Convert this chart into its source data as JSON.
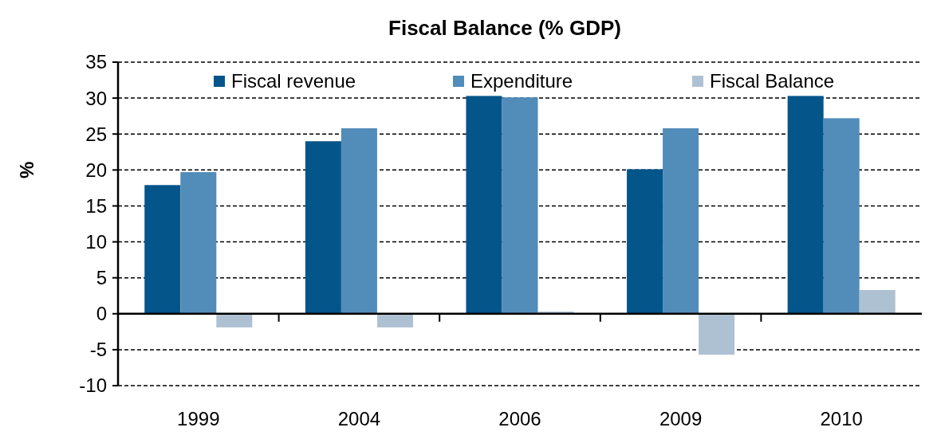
{
  "chart_data": {
    "type": "bar",
    "title": "Fiscal Balance (% GDP)",
    "ylabel": "%",
    "categories": [
      "1999",
      "2004",
      "2006",
      "2009",
      "2010"
    ],
    "series": [
      {
        "name": "Fiscal revenue",
        "color": "#03558a",
        "values": [
          17.9,
          24,
          30.3,
          20.1,
          30.3
        ]
      },
      {
        "name": "Expenditure",
        "color": "#528cb9",
        "values": [
          19.7,
          25.8,
          30.1,
          25.8,
          27.2
        ]
      },
      {
        "name": "Fiscal Balance",
        "color": "#aec1d2",
        "values": [
          -1.9,
          -1.9,
          0.3,
          -5.7,
          3.3
        ]
      }
    ],
    "ylim": [
      -10,
      35
    ],
    "yticks": [
      -10,
      -5,
      0,
      5,
      10,
      15,
      20,
      25,
      30,
      35
    ],
    "grid": "y",
    "legend": "top right"
  }
}
